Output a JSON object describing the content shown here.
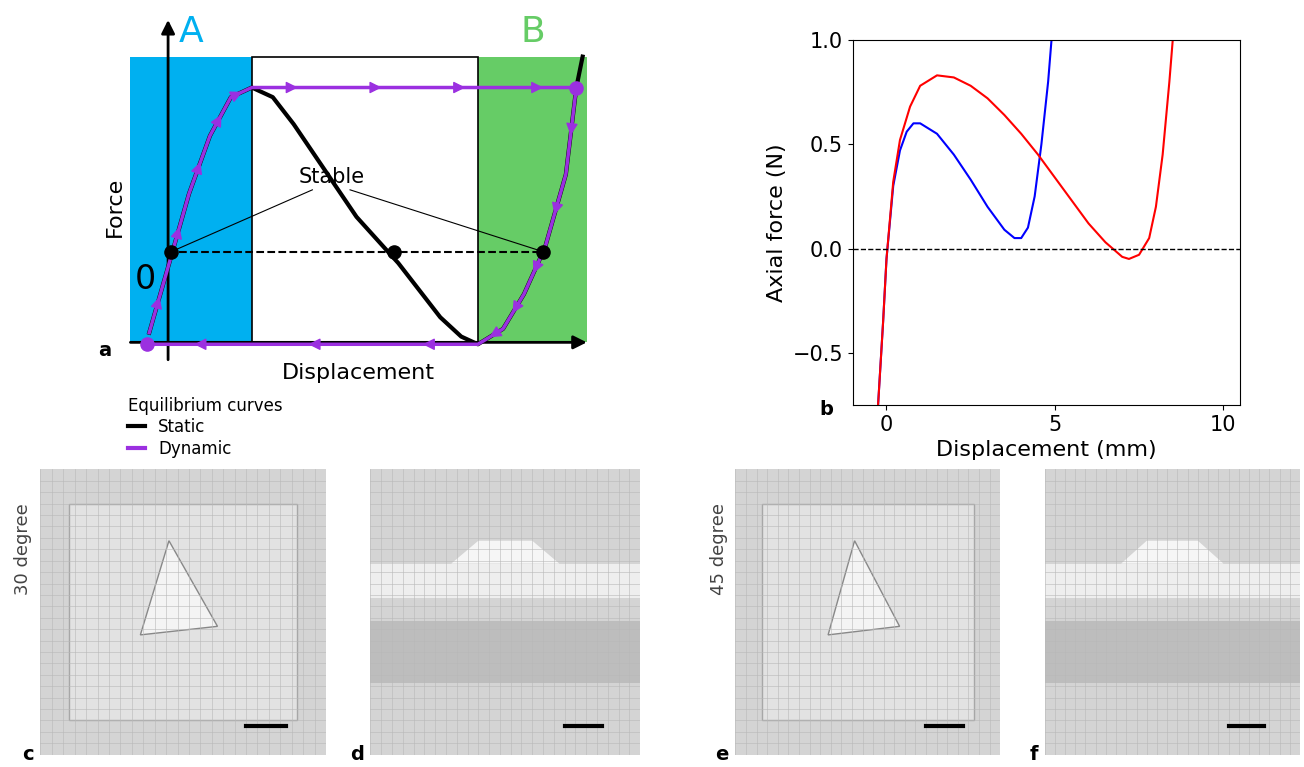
{
  "chart_data": [
    {
      "letter": "a",
      "type": "line",
      "x_label": "Displacement",
      "y_label": "Force",
      "origin_label": "0",
      "tick_labels": false,
      "xlim": [
        -0.9,
        10.0
      ],
      "ylim": [
        -2.8,
        6.0
      ],
      "regions": [
        {
          "label": "A",
          "x": [
            -0.9,
            2.0
          ],
          "y": [
            -2.35,
            5.05
          ],
          "color": "#00b0f0"
        },
        {
          "label": "B",
          "x": [
            7.4,
            10.0
          ],
          "y": [
            -2.35,
            5.05
          ],
          "color": "#66cc66"
        }
      ],
      "series": [
        {
          "name": "Static",
          "color": "black",
          "x": [
            -0.45,
            0.0,
            0.5,
            1.0,
            1.5,
            2.0,
            2.5,
            3.0,
            3.5,
            4.0,
            4.5,
            5.0,
            5.5,
            6.0,
            6.5,
            7.0,
            7.4,
            8.0,
            8.5,
            9.0,
            9.5,
            9.75,
            9.9
          ],
          "values": [
            -2.1,
            -0.4,
            1.5,
            3.0,
            4.0,
            4.25,
            4.0,
            3.3,
            2.5,
            1.7,
            0.9,
            0.3,
            -0.3,
            -1.0,
            -1.7,
            -2.2,
            -2.4,
            -2.0,
            -1.1,
            0.1,
            2.0,
            4.25,
            5.05
          ]
        },
        {
          "name": "Dynamic",
          "color": "#9b30e0",
          "marker": "arrow",
          "x": [
            -0.45,
            0.0,
            0.5,
            1.0,
            1.5,
            2.0,
            4.0,
            6.0,
            8.0,
            9.75,
            9.5,
            9.0,
            8.5,
            8.0,
            7.4,
            5.0,
            2.0,
            -0.5
          ],
          "values": [
            -2.1,
            -0.4,
            1.5,
            3.0,
            4.0,
            4.25,
            4.25,
            4.25,
            4.25,
            4.25,
            2.0,
            0.1,
            -1.1,
            -2.0,
            -2.4,
            -2.4,
            -2.4,
            -2.4
          ],
          "marked_points": {
            "x": [
              9.75,
              -0.5
            ],
            "values": [
              4.25,
              -2.4
            ]
          }
        }
      ],
      "equilibria": {
        "x": [
          0.08,
          5.4,
          8.95
        ],
        "values": [
          0,
          0,
          0
        ]
      },
      "reference_line": 0,
      "annotation": {
        "text": "Stable",
        "targets": [
          0,
          2
        ]
      },
      "legend": "upper left",
      "legend_title": "Equilibrium curves"
    },
    {
      "letter": "b",
      "type": "line",
      "x_label": "Displacement (mm)",
      "y_label": "Axial force (N)",
      "xlim": [
        -1.0,
        10.5
      ],
      "ylim": [
        -0.75,
        1.0
      ],
      "xticks": [
        0,
        5,
        10
      ],
      "yticks": [
        {
          "value": -0.5,
          "label": "−0.5"
        },
        0.0,
        0.5,
        1.0
      ],
      "reference_line": 0,
      "series": [
        {
          "color": "blue",
          "x": [
            -0.25,
            -0.1,
            0.0,
            0.2,
            0.4,
            0.6,
            0.8,
            1.0,
            1.5,
            2.0,
            2.5,
            3.0,
            3.5,
            3.8,
            4.0,
            4.2,
            4.4,
            4.6,
            4.8,
            4.9
          ],
          "values": [
            -0.75,
            -0.35,
            -0.05,
            0.3,
            0.47,
            0.56,
            0.6,
            0.6,
            0.55,
            0.45,
            0.33,
            0.2,
            0.09,
            0.05,
            0.05,
            0.1,
            0.25,
            0.5,
            0.8,
            1.0
          ]
        },
        {
          "color": "red",
          "x": [
            -0.25,
            -0.1,
            0.0,
            0.2,
            0.4,
            0.7,
            1.0,
            1.5,
            2.0,
            2.5,
            3.0,
            3.5,
            4.0,
            4.5,
            5.0,
            5.5,
            6.0,
            6.5,
            7.0,
            7.2,
            7.5,
            7.8,
            8.0,
            8.2,
            8.4,
            8.5
          ],
          "values": [
            -0.75,
            -0.35,
            -0.05,
            0.32,
            0.52,
            0.68,
            0.78,
            0.83,
            0.82,
            0.78,
            0.72,
            0.64,
            0.55,
            0.45,
            0.34,
            0.23,
            0.12,
            0.03,
            -0.04,
            -0.05,
            -0.03,
            0.05,
            0.2,
            0.45,
            0.8,
            1.0
          ]
        }
      ]
    }
  ],
  "photos": [
    {
      "letter": "c",
      "row_label": "30 degree"
    },
    {
      "letter": "d"
    },
    {
      "letter": "e",
      "row_label": "45 degree"
    },
    {
      "letter": "f"
    }
  ]
}
